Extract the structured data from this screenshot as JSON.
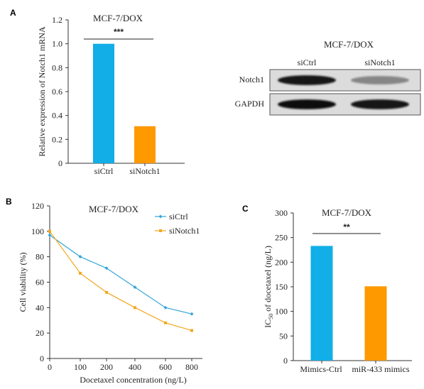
{
  "figure": {
    "panels": [
      "A",
      "B",
      "C"
    ]
  },
  "chart_data": [
    {
      "panel": "A",
      "type": "bar",
      "title": "MCF-7/DOX",
      "ylabel": "Relative expression of Notch1 mRNA",
      "xlabel": "",
      "categories": [
        "siCtrl",
        "siNotch1"
      ],
      "values": [
        1.0,
        0.31
      ],
      "colors": [
        "#11aee8",
        "#ff9900"
      ],
      "ylim": [
        0,
        1.2
      ],
      "yticks": [
        0,
        0.2,
        0.4,
        0.6,
        0.8,
        1.0,
        1.2
      ],
      "ytick_labels": [
        "0",
        "0.2",
        "0.4",
        "0.6",
        "0.8",
        "1.0",
        "1.2"
      ],
      "significance": "***"
    },
    {
      "panel": "B",
      "type": "line",
      "title": "MCF-7/DOX",
      "xlabel": "Docetaxel concentration (ng/L)",
      "ylabel": "Cell viability (%)",
      "x": [
        0,
        100,
        200,
        400,
        600,
        800
      ],
      "xtick_labels": [
        "0",
        "100",
        "200",
        "400",
        "600",
        "800"
      ],
      "yticks": [
        0,
        20,
        40,
        60,
        80,
        100,
        120
      ],
      "ylim": [
        0,
        120
      ],
      "legend": "top-right",
      "series": [
        {
          "name": "siCtrl",
          "values": [
            97,
            80,
            71,
            56,
            40,
            35
          ],
          "color": "#36a6d8"
        },
        {
          "name": "siNotch1",
          "values": [
            100,
            67,
            52,
            40,
            28,
            22
          ],
          "color": "#f2a81d"
        }
      ]
    },
    {
      "panel": "C",
      "type": "bar",
      "title": "MCF-7/DOX",
      "ylabel": "IC50 of docetaxel (ng/L)",
      "ylabel_parts": [
        "IC",
        "50",
        " of docetaxel (ng/L)"
      ],
      "xlabel": "",
      "categories": [
        "Mimics-Ctrl",
        "miR-433 mimics"
      ],
      "values": [
        233,
        151
      ],
      "colors": [
        "#11aee8",
        "#ff9900"
      ],
      "ylim": [
        0,
        300
      ],
      "yticks": [
        0,
        50,
        100,
        150,
        200,
        250,
        300
      ],
      "significance": "**"
    }
  ],
  "western_blot": {
    "title": "MCF-7/DOX",
    "lanes": [
      "siCtrl",
      "siNotch1"
    ],
    "rows": [
      {
        "label": "Notch1",
        "intensities": [
          0.92,
          0.45
        ]
      },
      {
        "label": "GAPDH",
        "intensities": [
          0.95,
          0.92
        ]
      }
    ]
  }
}
